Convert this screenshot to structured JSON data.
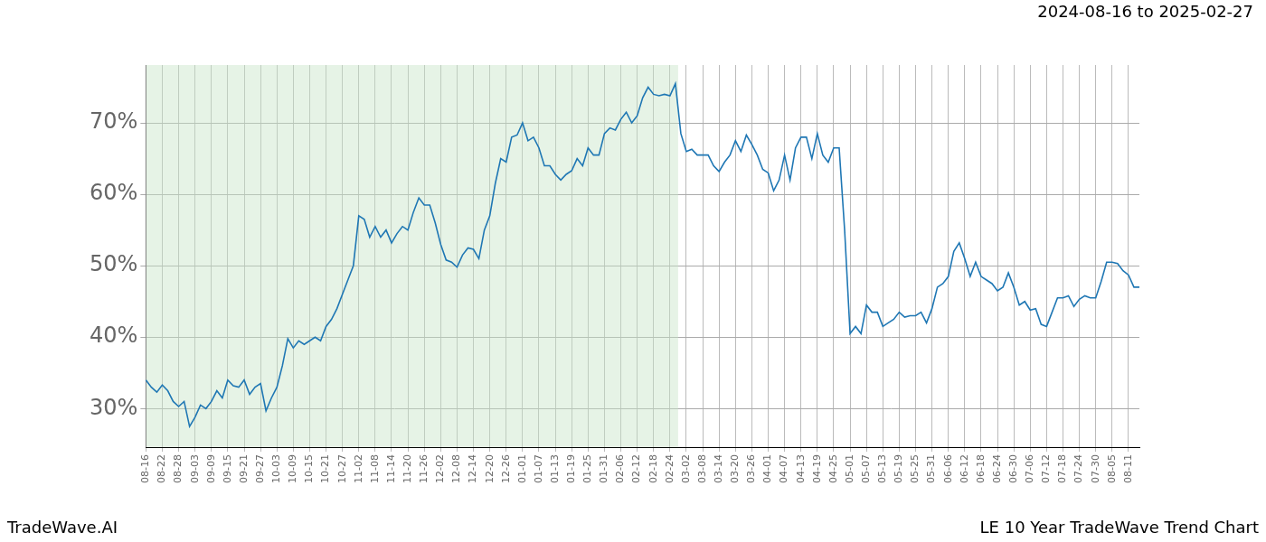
{
  "chart_data": {
    "type": "line",
    "title": "2024-08-16 to 2025-02-27",
    "footer_left": "TradeWave.AI",
    "footer_right": "LE 10 Year TradeWave Trend Chart",
    "categories": [
      "08-16",
      null,
      null,
      "08-22",
      null,
      null,
      "08-28",
      null,
      null,
      "09-03",
      null,
      null,
      "09-09",
      null,
      null,
      "09-15",
      null,
      null,
      "09-21",
      null,
      null,
      "09-27",
      null,
      null,
      "10-03",
      null,
      null,
      "10-09",
      null,
      null,
      "10-15",
      null,
      null,
      "10-21",
      null,
      null,
      "10-27",
      null,
      null,
      "11-02",
      null,
      null,
      "11-08",
      null,
      null,
      "11-14",
      null,
      null,
      "11-20",
      null,
      null,
      "11-26",
      null,
      null,
      "12-02",
      null,
      null,
      "12-08",
      null,
      null,
      "12-14",
      null,
      null,
      "12-20",
      null,
      null,
      "12-26",
      null,
      null,
      "01-01",
      null,
      null,
      "01-07",
      null,
      null,
      "01-13",
      null,
      null,
      "01-19",
      null,
      null,
      "01-25",
      null,
      null,
      "01-31",
      null,
      null,
      "02-06",
      null,
      null,
      "02-12",
      null,
      null,
      "02-18",
      null,
      null,
      "02-24",
      null,
      null,
      "03-02",
      null,
      null,
      "03-08",
      null,
      null,
      "03-14",
      null,
      null,
      "03-20",
      null,
      null,
      "03-26",
      null,
      null,
      "04-01",
      null,
      null,
      "04-07",
      null,
      null,
      "04-13",
      null,
      null,
      "04-19",
      null,
      null,
      "04-25",
      null,
      null,
      "05-01",
      null,
      null,
      "05-07",
      null,
      null,
      "05-13",
      null,
      null,
      "05-19",
      null,
      null,
      "05-25",
      null,
      null,
      "05-31",
      null,
      null,
      "06-06",
      null,
      null,
      "06-12",
      null,
      null,
      "06-18",
      null,
      null,
      "06-24",
      null,
      null,
      "06-30",
      null,
      null,
      "07-06",
      null,
      null,
      "07-12",
      null,
      null,
      "07-18",
      null,
      null,
      "07-24",
      null,
      null,
      "07-30",
      null,
      null,
      "08-05",
      null,
      null,
      "08-11",
      null,
      null
    ],
    "values": [
      34,
      33,
      32.3,
      33.3,
      32.5,
      31,
      30.3,
      31,
      27.5,
      28.8,
      30.5,
      30,
      31,
      32.5,
      31.5,
      34,
      33.2,
      33,
      34,
      32,
      33,
      33.5,
      29.7,
      31.5,
      33,
      36,
      39.8,
      38.5,
      39.5,
      39,
      39.5,
      40,
      39.5,
      41.5,
      42.5,
      44,
      46,
      48,
      50,
      57,
      56.5,
      54,
      55.5,
      54,
      55,
      53.2,
      54.5,
      55.5,
      55,
      57.5,
      59.5,
      58.5,
      58.5,
      56,
      53,
      50.8,
      50.5,
      49.8,
      51.5,
      52.5,
      52.3,
      51,
      55,
      57,
      61.5,
      65,
      64.5,
      68,
      68.3,
      70,
      67.5,
      68,
      66.5,
      64,
      64,
      62.8,
      62,
      62.8,
      63.3,
      65,
      64,
      66.5,
      65.5,
      65.5,
      68.5,
      69.3,
      69,
      70.5,
      71.5,
      70,
      71,
      73.5,
      75,
      74,
      73.8,
      74,
      73.8,
      75.5,
      68.5,
      66,
      66.3,
      65.5,
      65.5,
      65.5,
      64,
      63.2,
      64.5,
      65.5,
      67.5,
      66,
      68.3,
      67,
      65.5,
      63.5,
      63,
      60.5,
      62,
      65.5,
      62,
      66.5,
      68,
      68,
      65,
      68.5,
      65.5,
      64.5,
      66.5,
      66.5,
      55,
      40.5,
      41.5,
      40.5,
      44.5,
      43.5,
      43.5,
      41.5,
      42,
      42.5,
      43.5,
      42.8,
      43,
      43,
      43.5,
      42,
      44,
      47,
      47.5,
      48.5,
      52,
      53.2,
      51,
      48.5,
      50.5,
      48.5,
      48,
      47.5,
      46.5,
      47,
      49,
      47,
      44.5,
      45,
      43.8,
      44,
      41.8,
      41.5,
      43.5,
      45.5,
      45.5,
      45.8,
      44.3,
      45.3,
      45.8,
      45.5,
      45.5,
      47.8,
      50.5,
      50.5,
      50.3,
      49.3,
      48.7,
      47,
      47
    ],
    "color": "#1f77b4",
    "highlight_range": {
      "from": "08-16",
      "to": "02-27"
    },
    "ylim": [
      24.6,
      78.1
    ],
    "yticks": [
      {
        "value": 30,
        "label": "30%"
      },
      {
        "value": 40,
        "label": "40%"
      },
      {
        "value": 50,
        "label": "50%"
      },
      {
        "value": 60,
        "label": "60%"
      },
      {
        "value": 70,
        "label": "70%"
      }
    ],
    "grid": true
  }
}
